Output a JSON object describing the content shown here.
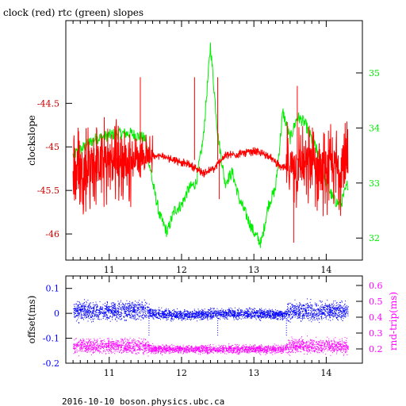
{
  "title": "clock (red) rtc (green) slopes",
  "footer": "2016-10-10 boson.physics.ubc.ca",
  "colors": {
    "clock": "#ff0000",
    "rtc": "#00ee00",
    "offset": "#0000ff",
    "roundtrip": "#ff00ff",
    "frame": "#000000"
  },
  "chart_data": [
    {
      "type": "line",
      "title": "clock (red) rtc (green) slopes",
      "xlim": [
        10.4,
        14.5
      ],
      "x_ticks": [
        11,
        12,
        13,
        14
      ],
      "x_tick_labels": [
        "11",
        "12",
        "13",
        "14"
      ],
      "left_axis": {
        "label": "clockslope",
        "ylim": [
          -46.3,
          -43.55
        ],
        "ticks": [
          -44.5,
          -45,
          -45.5,
          -46
        ],
        "tick_labels": [
          "-44.5",
          "-45",
          "-45.5",
          "-46"
        ],
        "color": "#cc0000"
      },
      "right_axis": {
        "label": "",
        "ylim": [
          31.6,
          35.95
        ],
        "ticks": [
          32,
          33,
          34,
          35
        ],
        "tick_labels": [
          "32",
          "33",
          "34",
          "35"
        ],
        "color": "#00ee00"
      },
      "series": [
        {
          "name": "clock",
          "axis": "left",
          "color": "#ff0000",
          "x": [
            10.5,
            10.8,
            11.1,
            11.3,
            11.5,
            11.7,
            11.9,
            12.1,
            12.3,
            12.45,
            12.6,
            12.8,
            13.0,
            13.2,
            13.4,
            13.5,
            13.7,
            13.9,
            14.1,
            14.3
          ],
          "y": [
            -45.25,
            -45.2,
            -45.15,
            -45.15,
            -45.1,
            -45.1,
            -45.15,
            -45.2,
            -45.3,
            -45.25,
            -45.1,
            -45.08,
            -45.05,
            -45.1,
            -45.25,
            -45.22,
            -45.2,
            -45.25,
            -45.25,
            -45.25
          ]
        },
        {
          "name": "rtc",
          "axis": "right",
          "color": "#00ee00",
          "x": [
            10.5,
            10.8,
            11.1,
            11.3,
            11.5,
            11.6,
            11.7,
            11.8,
            11.9,
            12.0,
            12.1,
            12.2,
            12.3,
            12.4,
            12.5,
            12.6,
            12.7,
            12.8,
            12.9,
            13.0,
            13.1,
            13.2,
            13.3,
            13.4,
            13.5,
            13.6,
            13.7,
            13.8,
            13.9,
            14.0,
            14.1,
            14.2,
            14.3
          ],
          "y": [
            33.5,
            33.8,
            33.9,
            33.9,
            33.8,
            33.0,
            32.4,
            32.1,
            32.5,
            32.6,
            32.9,
            33.0,
            33.8,
            35.5,
            33.9,
            33.0,
            33.2,
            32.7,
            32.4,
            32.1,
            31.9,
            32.6,
            32.9,
            34.3,
            33.8,
            34.2,
            34.1,
            33.8,
            33.5,
            33.0,
            32.7,
            32.6,
            33.0
          ]
        }
      ]
    },
    {
      "type": "scatter",
      "xlim": [
        10.4,
        14.5
      ],
      "x_ticks": [
        11,
        12,
        13,
        14
      ],
      "x_tick_labels": [
        "11",
        "12",
        "13",
        "14"
      ],
      "left_axis": {
        "label": "offset(ms)",
        "ylim": [
          -0.2,
          0.15
        ],
        "ticks": [
          0.1,
          0,
          -0.1,
          -0.2
        ],
        "tick_labels": [
          "0.1",
          "0",
          "-0.1",
          "-0.2"
        ],
        "color": "#0000ff"
      },
      "right_axis": {
        "label": "rnd-trip(ms)",
        "ylim": [
          0.11,
          0.66
        ],
        "ticks": [
          0.2,
          0.3,
          0.4,
          0.5,
          0.6
        ],
        "tick_labels": [
          "0.2",
          "0.3",
          "0.4",
          "0.5",
          "0.6"
        ],
        "color": "#ff00ff"
      },
      "series": [
        {
          "name": "offset",
          "axis": "left",
          "color": "#0000ff",
          "x": [
            10.5,
            11.0,
            11.5,
            11.6,
            12.0,
            12.5,
            13.0,
            13.4,
            13.5,
            14.0,
            14.3
          ],
          "y": [
            0.01,
            0.01,
            0.015,
            0.0,
            -0.005,
            0.0,
            0.0,
            -0.005,
            0.01,
            0.01,
            0.01
          ]
        },
        {
          "name": "rnd-trip",
          "axis": "right",
          "color": "#ff00ff",
          "x": [
            10.5,
            11.0,
            11.5,
            11.6,
            12.0,
            12.5,
            13.0,
            13.4,
            13.5,
            14.0,
            14.3
          ],
          "y": [
            0.22,
            0.22,
            0.22,
            0.2,
            0.2,
            0.2,
            0.2,
            0.2,
            0.22,
            0.22,
            0.22
          ]
        }
      ]
    }
  ]
}
